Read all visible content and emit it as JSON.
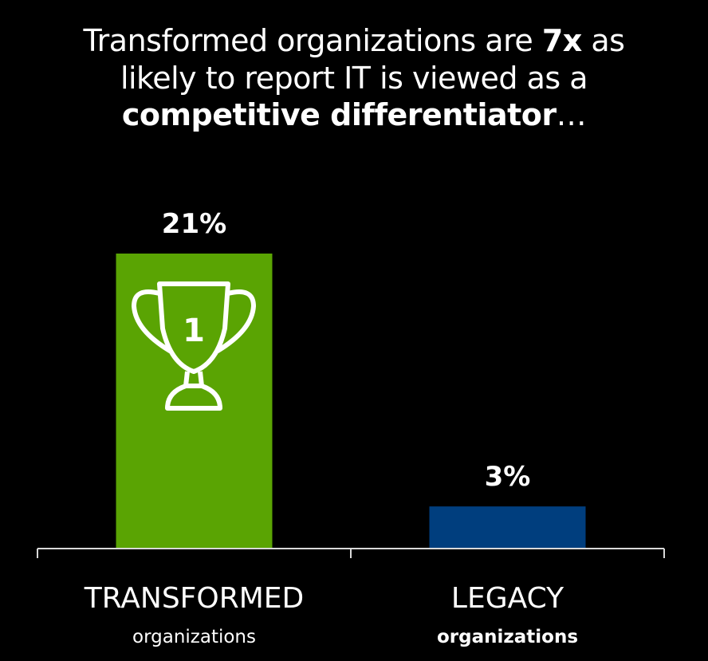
{
  "header": {
    "title_line1_pre": "Transformed organizations are ",
    "title_line1_bold": "7x",
    "title_line1_post": " as",
    "title_line2": "likely to report IT is viewed as a",
    "title_line3_bold": "competitive differentiator",
    "title_line3_post": "…"
  },
  "trophy": {
    "icon": "trophy-icon",
    "rank": "1"
  },
  "colors": {
    "background": "#000000",
    "transformed": "#5aa403",
    "legacy": "#003e7e",
    "axis": "#d9d9d9",
    "text": "#ffffff"
  },
  "chart_data": {
    "type": "bar",
    "categories": [
      "TRANSFORMED organizations",
      "LEGACY organizations"
    ],
    "category_main": [
      "TRANSFORMED",
      "LEGACY"
    ],
    "category_sub": [
      "organizations",
      "organizations"
    ],
    "values": [
      21,
      3
    ],
    "data_labels": [
      "21%",
      "3%"
    ],
    "bar_colors": [
      "#5aa403",
      "#003e7e"
    ],
    "title": "",
    "xlabel": "",
    "ylabel": "",
    "ylim": [
      0,
      21
    ],
    "grid": false,
    "legend": "none"
  }
}
